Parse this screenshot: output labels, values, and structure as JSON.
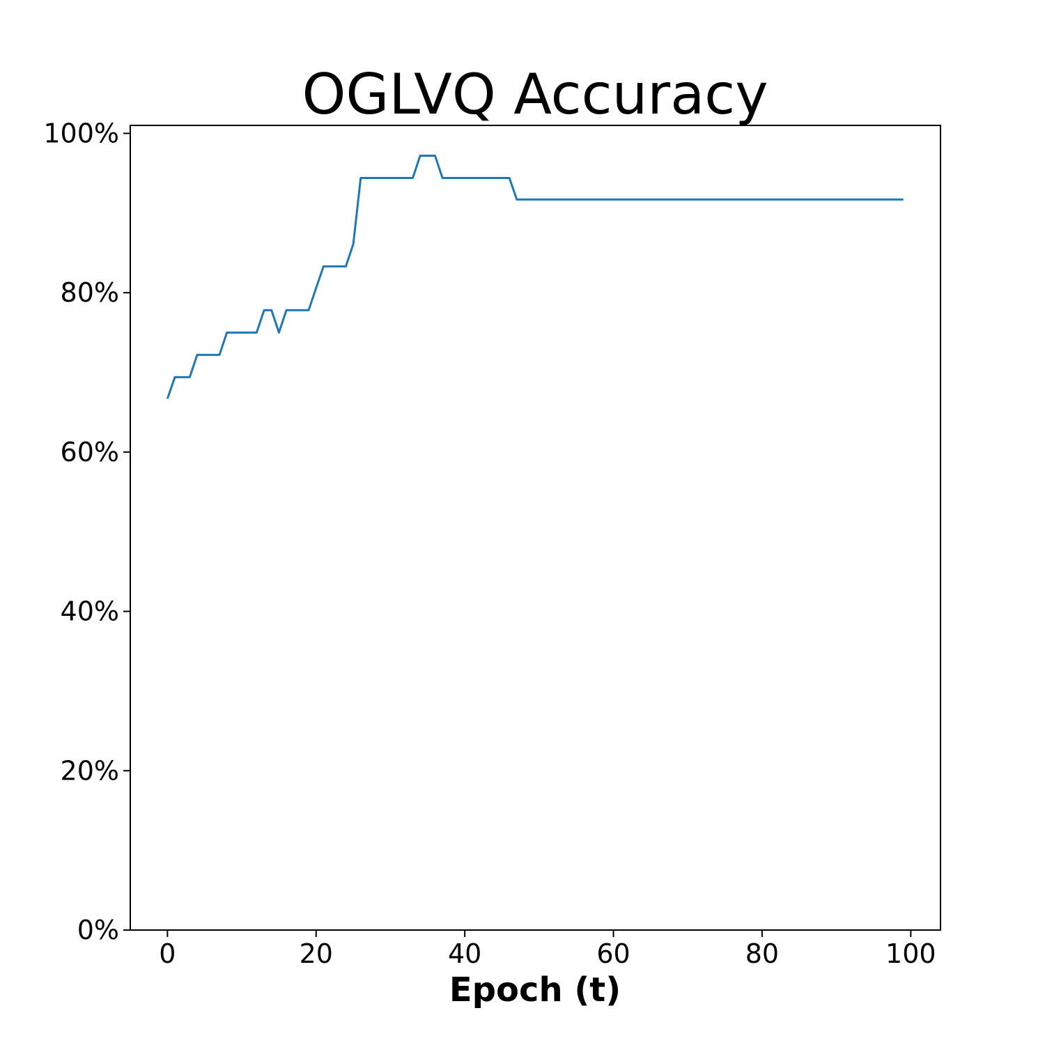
{
  "chart_data": {
    "type": "line",
    "title": "OGLVQ Accuracy",
    "xlabel": "Epoch (t)",
    "ylabel": "",
    "xlim": [
      -5,
      104
    ],
    "ylim": [
      0,
      1.01
    ],
    "xticks": [
      0,
      20,
      40,
      60,
      80,
      100
    ],
    "xtick_labels": [
      "0",
      "20",
      "40",
      "60",
      "80",
      "100"
    ],
    "yticks": [
      0,
      0.2,
      0.4,
      0.6,
      0.8,
      1.0
    ],
    "ytick_labels": [
      "0%",
      "20%",
      "40%",
      "60%",
      "80%",
      "100%"
    ],
    "grid": false,
    "legend": "none",
    "series": [
      {
        "color": "#1f77b4",
        "x": [
          0,
          1,
          2,
          3,
          4,
          5,
          6,
          7,
          8,
          9,
          10,
          11,
          12,
          13,
          14,
          15,
          16,
          17,
          18,
          19,
          20,
          21,
          22,
          23,
          24,
          25,
          26,
          27,
          28,
          29,
          30,
          31,
          32,
          33,
          34,
          35,
          36,
          37,
          38,
          39,
          40,
          41,
          42,
          43,
          44,
          45,
          46,
          47,
          48,
          49,
          50,
          51,
          52,
          53,
          54,
          55,
          56,
          57,
          58,
          59,
          60,
          61,
          62,
          63,
          64,
          65,
          66,
          67,
          68,
          69,
          70,
          71,
          72,
          73,
          74,
          75,
          76,
          77,
          78,
          79,
          80,
          81,
          82,
          83,
          84,
          85,
          86,
          87,
          88,
          89,
          90,
          91,
          92,
          93,
          94,
          95,
          96,
          97,
          98,
          99
        ],
        "y": [
          0.667,
          0.694,
          0.694,
          0.694,
          0.722,
          0.722,
          0.722,
          0.722,
          0.75,
          0.75,
          0.75,
          0.75,
          0.75,
          0.778,
          0.778,
          0.75,
          0.778,
          0.778,
          0.778,
          0.778,
          0.806,
          0.833,
          0.833,
          0.833,
          0.833,
          0.861,
          0.944,
          0.944,
          0.944,
          0.944,
          0.944,
          0.944,
          0.944,
          0.944,
          0.972,
          0.972,
          0.972,
          0.944,
          0.944,
          0.944,
          0.944,
          0.944,
          0.944,
          0.944,
          0.944,
          0.944,
          0.944,
          0.917,
          0.917,
          0.917,
          0.917,
          0.917,
          0.917,
          0.917,
          0.917,
          0.917,
          0.917,
          0.917,
          0.917,
          0.917,
          0.917,
          0.917,
          0.917,
          0.917,
          0.917,
          0.917,
          0.917,
          0.917,
          0.917,
          0.917,
          0.917,
          0.917,
          0.917,
          0.917,
          0.917,
          0.917,
          0.917,
          0.917,
          0.917,
          0.917,
          0.917,
          0.917,
          0.917,
          0.917,
          0.917,
          0.917,
          0.917,
          0.917,
          0.917,
          0.917,
          0.917,
          0.917,
          0.917,
          0.917,
          0.917,
          0.917,
          0.917,
          0.917,
          0.917,
          0.917
        ]
      }
    ]
  }
}
